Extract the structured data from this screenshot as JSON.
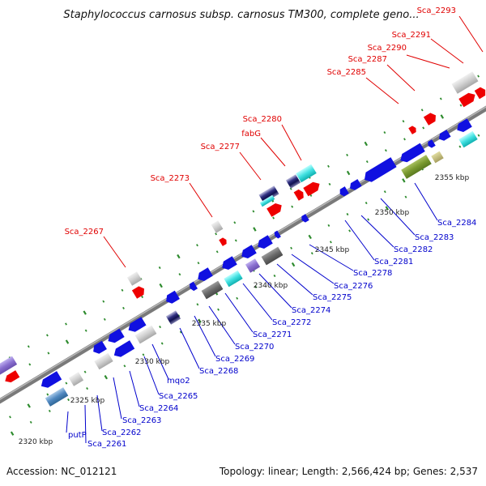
{
  "title": "Staphylococcus carnosus subsp. carnosus TM300, complete geno...",
  "footer": {
    "accession": "Accession: NC_012121",
    "summary": "Topology: linear; Length: 2,566,424 bp; Genes: 2,537"
  },
  "colors": {
    "forward_label": "#e00000",
    "reverse_label": "#0000cc",
    "tick": "#2e8b2e",
    "backbone": "#808080"
  },
  "scale_labels": [
    "2320 kbp",
    "2325 kbp",
    "2330 kbp",
    "2335 kbp",
    "2340 kbp",
    "2345 kbp",
    "2350 kbp",
    "2355 kbp"
  ],
  "forward_labels": [
    "Sca_2267",
    "Sca_2273",
    "Sca_2277",
    "fabG",
    "Sca_2280",
    "Sca_2285",
    "Sca_2287",
    "Sca_2290",
    "Sca_2291",
    "Sca_2293"
  ],
  "reverse_labels": [
    "putP",
    "Sca_2261",
    "Sca_2262",
    "Sca_2263",
    "Sca_2264",
    "Sca_2265",
    "mqo2",
    "Sca_2268",
    "Sca_2269",
    "Sca_2270",
    "Sca_2271",
    "Sca_2272",
    "Sca_2274",
    "Sca_2275",
    "Sca_2276",
    "Sca_2278",
    "Sca_2281",
    "Sca_2282",
    "Sca_2283",
    "Sca_2284"
  ]
}
